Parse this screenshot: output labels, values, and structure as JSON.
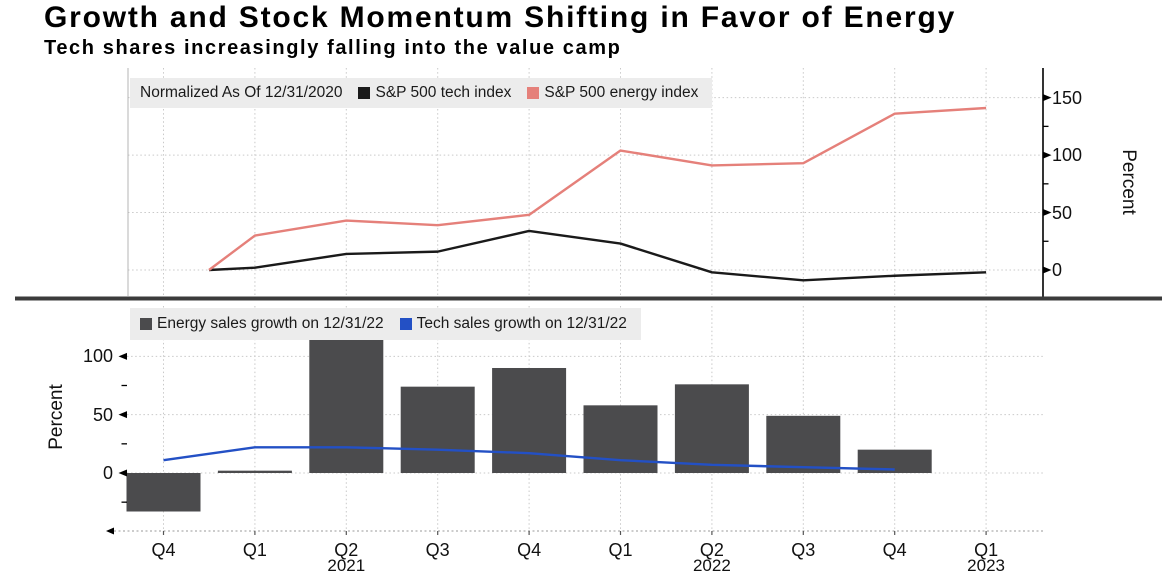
{
  "header": {
    "title": "Growth and Stock Momentum Shifting in Favor of Energy",
    "subtitle": "Tech shares increasingly falling into the value camp"
  },
  "colors": {
    "tech_line": "#1a1a1a",
    "energy_line": "#e5807a",
    "energy_bar": "#4b4b4d",
    "tech_sales_line": "#2350c5",
    "legend_bg": "#ececec",
    "grid": "#c9c9c9",
    "divider": "#3b3b3b",
    "axis": "#000000"
  },
  "top_chart": {
    "note": "Normalized As Of 12/31/2020",
    "legend": [
      {
        "label": "S&P 500 tech index",
        "color": "#1a1a1a"
      },
      {
        "label": "S&P 500 energy index",
        "color": "#e5807a"
      }
    ],
    "y_axis": {
      "label": "Percent",
      "ticks": [
        0,
        50,
        100,
        150
      ],
      "minor_ticks": [
        25,
        75,
        125
      ],
      "side": "right"
    }
  },
  "bottom_chart": {
    "legend": [
      {
        "label": "Energy sales growth on 12/31/22",
        "color": "#4b4b4d"
      },
      {
        "label": "Tech sales growth on 12/31/22",
        "color": "#2350c5"
      }
    ],
    "y_axis": {
      "label": "Percent",
      "ticks": [
        0,
        50,
        100
      ],
      "minor_ticks": [
        -25,
        25,
        75
      ],
      "side": "left"
    }
  },
  "x_axis": {
    "quarters": [
      "Q4",
      "Q1",
      "Q2",
      "Q3",
      "Q4",
      "Q1",
      "Q2",
      "Q3",
      "Q4",
      "Q1"
    ],
    "years": [
      {
        "label": "2021",
        "index": 2
      },
      {
        "label": "2022",
        "index": 6
      },
      {
        "label": "2023",
        "index": 9
      }
    ]
  },
  "chart_data": [
    {
      "type": "line",
      "categories": [
        "Q4 2020",
        "Q1 2021",
        "Q2 2021",
        "Q3 2021",
        "Q4 2021",
        "Q1 2022",
        "Q2 2022",
        "Q3 2022",
        "Q4 2022",
        "Q1 2023"
      ],
      "series": [
        {
          "name": "S&P 500 tech index",
          "color": "#1a1a1a",
          "values": [
            0,
            2,
            14,
            16,
            34,
            23,
            -2,
            -9,
            -5,
            -2
          ]
        },
        {
          "name": "S&P 500 energy index",
          "color": "#e5807a",
          "values": [
            0,
            30,
            43,
            39,
            48,
            104,
            91,
            93,
            136,
            141
          ]
        }
      ],
      "ylabel": "Percent",
      "ylim": [
        -22,
        168
      ],
      "yticks": [
        0,
        50,
        100,
        150
      ],
      "grid": true,
      "legend_position": "top-left",
      "axis_side": "right"
    },
    {
      "type": "bar",
      "categories": [
        "Q4 2020",
        "Q1 2021",
        "Q2 2021",
        "Q3 2021",
        "Q4 2021",
        "Q1 2022",
        "Q2 2022",
        "Q3 2022",
        "Q4 2022",
        "Q1 2023"
      ],
      "series": [
        {
          "name": "Energy sales growth on 12/31/22",
          "type": "bar",
          "color": "#4b4b4d",
          "values": [
            -33,
            2,
            114,
            74,
            90,
            58,
            76,
            49,
            20,
            null
          ]
        },
        {
          "name": "Tech sales growth on 12/31/22",
          "type": "line",
          "color": "#2350c5",
          "values": [
            11,
            22,
            22,
            20,
            17,
            11,
            7,
            5,
            3,
            null
          ]
        }
      ],
      "ylabel": "Percent",
      "ylim": [
        -50,
        128
      ],
      "yticks": [
        0,
        50,
        100
      ],
      "grid": true,
      "legend_position": "top-left",
      "axis_side": "left"
    }
  ]
}
